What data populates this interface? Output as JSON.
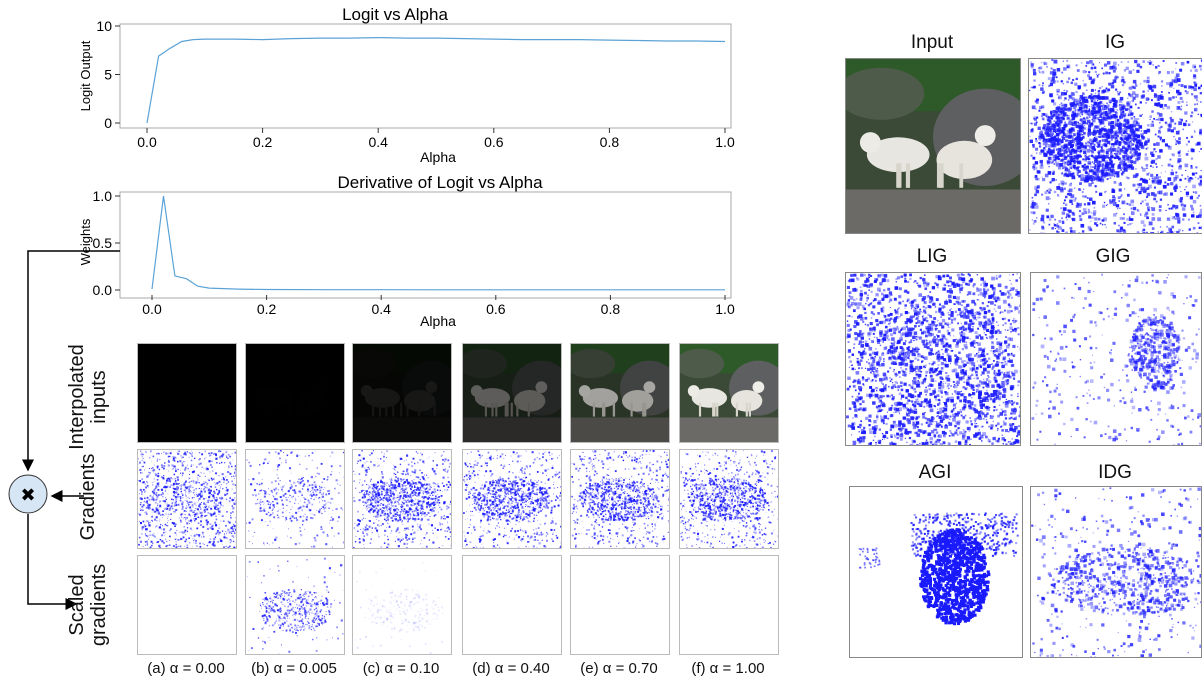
{
  "chart_data": [
    {
      "type": "line",
      "title": "Logit vs Alpha",
      "xlabel": "Alpha",
      "ylabel": "Logit Output",
      "xlim": [
        0.0,
        1.0
      ],
      "ylim": [
        0,
        10
      ],
      "xticks": [
        "0.0",
        "0.2",
        "0.4",
        "0.6",
        "0.8",
        "1.0"
      ],
      "yticks": [
        "0",
        "5",
        "10"
      ],
      "series": [
        {
          "x": [
            0.0,
            0.02,
            0.04,
            0.06,
            0.08,
            0.1,
            0.15,
            0.2,
            0.25,
            0.3,
            0.35,
            0.4,
            0.45,
            0.5,
            0.55,
            0.6,
            0.65,
            0.7,
            0.75,
            0.8,
            0.85,
            0.9,
            0.95,
            1.0
          ],
          "y": [
            0.0,
            6.9,
            7.7,
            8.4,
            8.6,
            8.65,
            8.65,
            8.6,
            8.7,
            8.75,
            8.75,
            8.8,
            8.75,
            8.75,
            8.7,
            8.65,
            8.6,
            8.6,
            8.6,
            8.55,
            8.5,
            8.45,
            8.45,
            8.4
          ],
          "color": "#5ba3d6"
        }
      ]
    },
    {
      "type": "line",
      "title": "Derivative of Logit vs Alpha",
      "xlabel": "Alpha",
      "ylabel": "Weights",
      "xlim": [
        0.0,
        1.0
      ],
      "ylim": [
        0,
        1.0
      ],
      "xticks": [
        "0.0",
        "0.2",
        "0.4",
        "0.6",
        "0.8",
        "1.0"
      ],
      "yticks": [
        "0.0",
        "0.5",
        "1.0"
      ],
      "series": [
        {
          "x": [
            0.0,
            0.02,
            0.04,
            0.06,
            0.08,
            0.1,
            0.15,
            0.2,
            0.3,
            0.4,
            0.5,
            0.6,
            0.7,
            0.8,
            0.9,
            1.0
          ],
          "y": [
            0.01,
            1.0,
            0.15,
            0.12,
            0.04,
            0.02,
            0.01,
            0.005,
            0.003,
            0.003,
            0.002,
            0.002,
            0.002,
            0.002,
            0.002,
            0.002
          ],
          "color": "#5ba3d6"
        }
      ]
    }
  ],
  "grid": {
    "row_labels": [
      [
        "Interpolated",
        "inputs"
      ],
      [
        "Gradients"
      ],
      [
        "Scaled",
        "gradients"
      ]
    ],
    "captions": [
      "(a) α = 0.00",
      "(b) α = 0.005",
      "(c) α = 0.10",
      "(d) α = 0.40",
      "(e) α = 0.70",
      "(f) α = 1.00"
    ],
    "alphas": [
      0.0,
      0.005,
      0.1,
      0.4,
      0.7,
      1.0
    ]
  },
  "operator_glyph": "✖",
  "maps": {
    "titles": [
      "Input",
      "IG",
      "LIG",
      "GIG",
      "AGI",
      "IDG"
    ]
  },
  "colors": {
    "line": "#5ba3d6",
    "saliency": "#1a1aff",
    "operator_fill": "#d6e6f5"
  }
}
